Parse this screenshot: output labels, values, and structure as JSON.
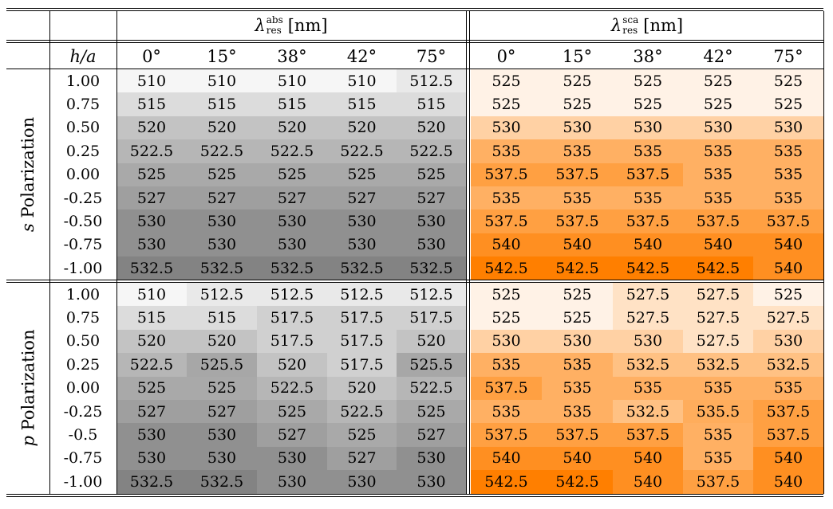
{
  "header": {
    "abs_symbol": "λ",
    "abs_sup": "abs",
    "abs_sub": "res",
    "abs_unit": "[nm]",
    "sca_symbol": "λ",
    "sca_sup": "sca",
    "sca_sub": "res",
    "sca_unit": "[nm]",
    "row_param": "h/a",
    "angles": [
      "0°",
      "15°",
      "38°",
      "42°",
      "75°"
    ]
  },
  "sections": [
    {
      "label_var": "s",
      "label_text": " Polarization",
      "rows": [
        {
          "h": "1.00",
          "abs": [
            "510",
            "510",
            "510",
            "510",
            "512.5"
          ],
          "sca": [
            "525",
            "525",
            "525",
            "525",
            "525"
          ]
        },
        {
          "h": "0.75",
          "abs": [
            "515",
            "515",
            "515",
            "515",
            "515"
          ],
          "sca": [
            "525",
            "525",
            "525",
            "525",
            "525"
          ]
        },
        {
          "h": "0.50",
          "abs": [
            "520",
            "520",
            "520",
            "520",
            "520"
          ],
          "sca": [
            "530",
            "530",
            "530",
            "530",
            "530"
          ]
        },
        {
          "h": "0.25",
          "abs": [
            "522.5",
            "522.5",
            "522.5",
            "522.5",
            "522.5"
          ],
          "sca": [
            "535",
            "535",
            "535",
            "535",
            "535"
          ]
        },
        {
          "h": "0.00",
          "abs": [
            "525",
            "525",
            "525",
            "525",
            "525"
          ],
          "sca": [
            "537.5",
            "537.5",
            "537.5",
            "535",
            "535"
          ]
        },
        {
          "h": "-0.25",
          "abs": [
            "527",
            "527",
            "527",
            "527",
            "527"
          ],
          "sca": [
            "535",
            "535",
            "535",
            "535",
            "535"
          ]
        },
        {
          "h": "-0.50",
          "abs": [
            "530",
            "530",
            "530",
            "530",
            "530"
          ],
          "sca": [
            "537.5",
            "537.5",
            "537.5",
            "537.5",
            "537.5"
          ]
        },
        {
          "h": "-0.75",
          "abs": [
            "530",
            "530",
            "530",
            "530",
            "530"
          ],
          "sca": [
            "540",
            "540",
            "540",
            "540",
            "540"
          ]
        },
        {
          "h": "-1.00",
          "abs": [
            "532.5",
            "532.5",
            "532.5",
            "532.5",
            "532.5"
          ],
          "sca": [
            "542.5",
            "542.5",
            "542.5",
            "542.5",
            "540"
          ]
        }
      ]
    },
    {
      "label_var": "p",
      "label_text": " Polarization",
      "rows": [
        {
          "h": "1.00",
          "abs": [
            "510",
            "512.5",
            "512.5",
            "512.5",
            "512.5"
          ],
          "sca": [
            "525",
            "525",
            "527.5",
            "527.5",
            "525"
          ]
        },
        {
          "h": "0.75",
          "abs": [
            "515",
            "515",
            "517.5",
            "517.5",
            "517.5"
          ],
          "sca": [
            "525",
            "525",
            "527.5",
            "527.5",
            "527.5"
          ]
        },
        {
          "h": "0.50",
          "abs": [
            "520",
            "520",
            "517.5",
            "517.5",
            "520"
          ],
          "sca": [
            "530",
            "530",
            "530",
            "527.5",
            "530"
          ]
        },
        {
          "h": "0.25",
          "abs": [
            "522.5",
            "525.5",
            "520",
            "517.5",
            "525.5"
          ],
          "sca": [
            "535",
            "535",
            "532.5",
            "532.5",
            "532.5"
          ]
        },
        {
          "h": "0.00",
          "abs": [
            "525",
            "525",
            "522.5",
            "520",
            "522.5"
          ],
          "sca": [
            "537.5",
            "535",
            "535",
            "535",
            "535"
          ]
        },
        {
          "h": "-0.25",
          "abs": [
            "527",
            "527",
            "525",
            "522.5",
            "525"
          ],
          "sca": [
            "535",
            "535",
            "532.5",
            "535.5",
            "537.5"
          ]
        },
        {
          "h": "-0.5",
          "abs": [
            "530",
            "530",
            "527",
            "525",
            "527"
          ],
          "sca": [
            "537.5",
            "537.5",
            "537.5",
            "535",
            "537.5"
          ]
        },
        {
          "h": "-0.75",
          "abs": [
            "530",
            "530",
            "530",
            "527",
            "530"
          ],
          "sca": [
            "540",
            "540",
            "540",
            "535",
            "540"
          ]
        },
        {
          "h": "-1.00",
          "abs": [
            "532.5",
            "532.5",
            "530",
            "530",
            "530"
          ],
          "sca": [
            "542.5",
            "542.5",
            "540",
            "537.5",
            "540"
          ]
        }
      ]
    }
  ],
  "colors": {
    "abs_min_gray": "#f6f6f6",
    "abs_max_gray": "#838383",
    "sca_min_orange": "#fff2e6",
    "sca_max_orange": "#ff7f00"
  }
}
